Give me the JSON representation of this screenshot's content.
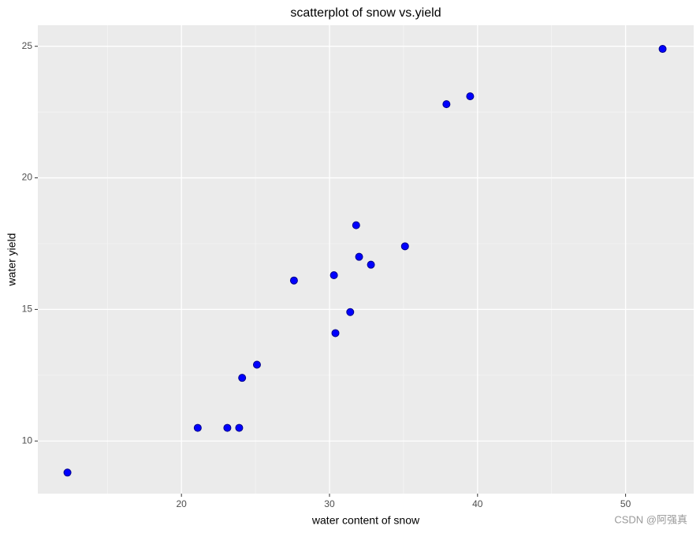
{
  "chart_data": {
    "type": "scatter",
    "title": "scatterplot of snow vs.yield",
    "x_label": "water content of snow",
    "y_label": "water yield",
    "x": [
      12.3,
      21.1,
      23.1,
      23.9,
      24.1,
      25.1,
      27.6,
      30.3,
      30.4,
      31.4,
      31.8,
      32.0,
      32.8,
      35.1,
      37.9,
      39.5,
      52.5
    ],
    "y": [
      8.8,
      10.5,
      10.5,
      10.5,
      12.4,
      12.9,
      16.1,
      16.3,
      14.1,
      14.9,
      18.2,
      17.0,
      16.7,
      17.4,
      22.8,
      23.1,
      24.9
    ],
    "color": "#0000ff",
    "xlim": [
      10.3,
      54.6
    ],
    "ylim": [
      8.0,
      25.8
    ],
    "xticks": [
      20,
      30,
      40,
      50
    ],
    "yticks": [
      10,
      15,
      20,
      25
    ],
    "xminor": [
      15,
      25,
      35,
      45
    ],
    "yminor": [
      12.5,
      17.5,
      22.5
    ],
    "grid": true,
    "watermark": "CSDN @阿强真"
  }
}
